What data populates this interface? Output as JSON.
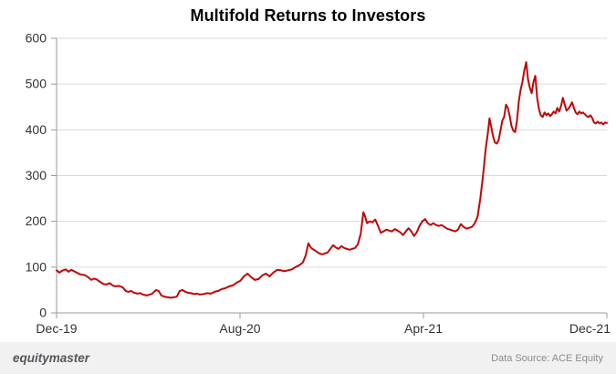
{
  "footer": {
    "brand": "equitymaster",
    "data_source": "Data Source: ACE Equity"
  },
  "colors": {
    "line": "#c00505",
    "grid": "#d9d9d9",
    "axis": "#9a9a9a",
    "axis_text": "#333333",
    "footer_bg": "#f1f1f2",
    "brand_text": "#55565a",
    "source_text": "#8c8c8c"
  },
  "chart_data": {
    "type": "line",
    "title": "Multifold Returns to Investors",
    "xlabel": "",
    "ylabel": "",
    "grid": "horizontal",
    "legend": "none",
    "x_axis": {
      "tick_labels": [
        "Dec-19",
        "Aug-20",
        "Apr-21",
        "Dec-21"
      ],
      "tick_positions_months": [
        0,
        8,
        16,
        24
      ],
      "range_months": [
        0,
        24
      ]
    },
    "y_axis": {
      "ticks": [
        0,
        100,
        200,
        300,
        400,
        500,
        600
      ],
      "range": [
        0,
        600
      ]
    },
    "series": [
      {
        "color": "#c00505",
        "points": [
          [
            0,
            93
          ],
          [
            0.12,
            88
          ],
          [
            0.24,
            92
          ],
          [
            0.4,
            95
          ],
          [
            0.52,
            90
          ],
          [
            0.64,
            94
          ],
          [
            0.72,
            92
          ],
          [
            0.92,
            87
          ],
          [
            1.04,
            84
          ],
          [
            1.2,
            83
          ],
          [
            1.32,
            80
          ],
          [
            1.52,
            72
          ],
          [
            1.64,
            75
          ],
          [
            1.76,
            73
          ],
          [
            1.92,
            67
          ],
          [
            2.04,
            63
          ],
          [
            2.16,
            62
          ],
          [
            2.32,
            65
          ],
          [
            2.44,
            60
          ],
          [
            2.56,
            58
          ],
          [
            2.72,
            59
          ],
          [
            2.88,
            56
          ],
          [
            3.01,
            48
          ],
          [
            3.13,
            46
          ],
          [
            3.25,
            48
          ],
          [
            3.37,
            44
          ],
          [
            3.53,
            42
          ],
          [
            3.65,
            43
          ],
          [
            3.77,
            40
          ],
          [
            3.93,
            38
          ],
          [
            4.05,
            40
          ],
          [
            4.17,
            42
          ],
          [
            4.33,
            50
          ],
          [
            4.45,
            48
          ],
          [
            4.57,
            38
          ],
          [
            4.73,
            35
          ],
          [
            4.85,
            34
          ],
          [
            4.97,
            33
          ],
          [
            5.13,
            34
          ],
          [
            5.25,
            36
          ],
          [
            5.37,
            48
          ],
          [
            5.49,
            50
          ],
          [
            5.61,
            46
          ],
          [
            5.73,
            44
          ],
          [
            5.85,
            43
          ],
          [
            6.01,
            41
          ],
          [
            6.13,
            42
          ],
          [
            6.25,
            40
          ],
          [
            6.41,
            41
          ],
          [
            6.57,
            43
          ],
          [
            6.73,
            42
          ],
          [
            6.89,
            46
          ],
          [
            7.05,
            48
          ],
          [
            7.21,
            52
          ],
          [
            7.37,
            54
          ],
          [
            7.53,
            58
          ],
          [
            7.69,
            60
          ],
          [
            7.85,
            66
          ],
          [
            8.01,
            70
          ],
          [
            8.17,
            80
          ],
          [
            8.33,
            86
          ],
          [
            8.49,
            78
          ],
          [
            8.65,
            72
          ],
          [
            8.81,
            74
          ],
          [
            8.97,
            82
          ],
          [
            9.13,
            86
          ],
          [
            9.29,
            80
          ],
          [
            9.45,
            88
          ],
          [
            9.62,
            94
          ],
          [
            9.78,
            93
          ],
          [
            9.94,
            91
          ],
          [
            10.1,
            93
          ],
          [
            10.26,
            95
          ],
          [
            10.42,
            100
          ],
          [
            10.58,
            104
          ],
          [
            10.74,
            110
          ],
          [
            10.86,
            125
          ],
          [
            10.98,
            152
          ],
          [
            11.1,
            142
          ],
          [
            11.22,
            138
          ],
          [
            11.34,
            134
          ],
          [
            11.46,
            130
          ],
          [
            11.58,
            128
          ],
          [
            11.7,
            130
          ],
          [
            11.82,
            132
          ],
          [
            11.94,
            140
          ],
          [
            12.06,
            148
          ],
          [
            12.18,
            143
          ],
          [
            12.3,
            140
          ],
          [
            12.42,
            146
          ],
          [
            12.54,
            142
          ],
          [
            12.66,
            140
          ],
          [
            12.78,
            138
          ],
          [
            12.9,
            140
          ],
          [
            13.02,
            142
          ],
          [
            13.14,
            150
          ],
          [
            13.26,
            172
          ],
          [
            13.38,
            220
          ],
          [
            13.46,
            210
          ],
          [
            13.54,
            196
          ],
          [
            13.66,
            200
          ],
          [
            13.78,
            198
          ],
          [
            13.9,
            204
          ],
          [
            14.02,
            190
          ],
          [
            14.14,
            175
          ],
          [
            14.26,
            178
          ],
          [
            14.38,
            182
          ],
          [
            14.5,
            180
          ],
          [
            14.62,
            178
          ],
          [
            14.75,
            183
          ],
          [
            14.87,
            180
          ],
          [
            14.99,
            176
          ],
          [
            15.11,
            170
          ],
          [
            15.23,
            178
          ],
          [
            15.35,
            185
          ],
          [
            15.47,
            178
          ],
          [
            15.59,
            168
          ],
          [
            15.71,
            176
          ],
          [
            15.83,
            190
          ],
          [
            15.95,
            200
          ],
          [
            16.07,
            205
          ],
          [
            16.19,
            196
          ],
          [
            16.31,
            192
          ],
          [
            16.43,
            196
          ],
          [
            16.55,
            192
          ],
          [
            16.67,
            190
          ],
          [
            16.79,
            192
          ],
          [
            16.91,
            188
          ],
          [
            17.03,
            184
          ],
          [
            17.15,
            182
          ],
          [
            17.27,
            180
          ],
          [
            17.39,
            178
          ],
          [
            17.51,
            182
          ],
          [
            17.63,
            194
          ],
          [
            17.75,
            188
          ],
          [
            17.88,
            184
          ],
          [
            18,
            186
          ],
          [
            18.12,
            188
          ],
          [
            18.24,
            196
          ],
          [
            18.36,
            210
          ],
          [
            18.48,
            250
          ],
          [
            18.6,
            300
          ],
          [
            18.72,
            360
          ],
          [
            18.8,
            390
          ],
          [
            18.88,
            425
          ],
          [
            18.96,
            405
          ],
          [
            19.04,
            385
          ],
          [
            19.12,
            372
          ],
          [
            19.2,
            370
          ],
          [
            19.28,
            378
          ],
          [
            19.36,
            398
          ],
          [
            19.44,
            420
          ],
          [
            19.52,
            428
          ],
          [
            19.6,
            455
          ],
          [
            19.68,
            448
          ],
          [
            19.76,
            430
          ],
          [
            19.84,
            408
          ],
          [
            19.92,
            398
          ],
          [
            20,
            395
          ],
          [
            20.08,
            420
          ],
          [
            20.16,
            462
          ],
          [
            20.24,
            488
          ],
          [
            20.32,
            505
          ],
          [
            20.4,
            530
          ],
          [
            20.48,
            548
          ],
          [
            20.56,
            510
          ],
          [
            20.64,
            492
          ],
          [
            20.72,
            480
          ],
          [
            20.8,
            505
          ],
          [
            20.88,
            518
          ],
          [
            20.96,
            470
          ],
          [
            21.04,
            445
          ],
          [
            21.12,
            432
          ],
          [
            21.2,
            428
          ],
          [
            21.28,
            438
          ],
          [
            21.36,
            432
          ],
          [
            21.44,
            436
          ],
          [
            21.52,
            430
          ],
          [
            21.6,
            434
          ],
          [
            21.68,
            440
          ],
          [
            21.76,
            436
          ],
          [
            21.84,
            448
          ],
          [
            21.92,
            440
          ],
          [
            22,
            452
          ],
          [
            22.08,
            470
          ],
          [
            22.16,
            455
          ],
          [
            22.24,
            442
          ],
          [
            22.32,
            446
          ],
          [
            22.4,
            452
          ],
          [
            22.48,
            460
          ],
          [
            22.56,
            448
          ],
          [
            22.64,
            438
          ],
          [
            22.72,
            434
          ],
          [
            22.8,
            440
          ],
          [
            22.88,
            436
          ],
          [
            22.96,
            438
          ],
          [
            23.04,
            434
          ],
          [
            23.12,
            430
          ],
          [
            23.2,
            428
          ],
          [
            23.28,
            432
          ],
          [
            23.36,
            426
          ],
          [
            23.44,
            416
          ],
          [
            23.52,
            414
          ],
          [
            23.6,
            418
          ],
          [
            23.68,
            414
          ],
          [
            23.76,
            416
          ],
          [
            23.84,
            412
          ],
          [
            23.92,
            416
          ],
          [
            24,
            415
          ]
        ]
      }
    ]
  }
}
